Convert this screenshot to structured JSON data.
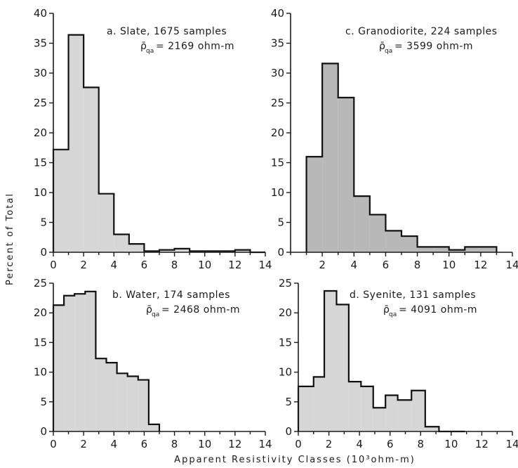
{
  "figure": {
    "ylabel": "Percent of Total",
    "xlabel": "Apparent   Resistivity   Classes   (10³ohm-m)",
    "colors": {
      "ink": "#111111",
      "fill_light": "#d6d6d6",
      "fill_dark": "#b8b8b8"
    }
  },
  "chart_data": [
    {
      "type": "bar",
      "panel": "a",
      "title": "a. Slate, 1675 samples",
      "mean_symbol": "ρ̄",
      "mean_sub": "qa",
      "mean_value": "= 2169 ohm-m",
      "xlim": [
        0,
        14
      ],
      "ylim": [
        0,
        40
      ],
      "xticks": [
        0,
        2,
        4,
        6,
        8,
        10,
        12,
        14
      ],
      "yticks": [
        0,
        5,
        10,
        15,
        20,
        25,
        30,
        35,
        40
      ],
      "bin_edges": [
        0,
        1,
        2,
        3,
        4,
        5,
        6,
        7,
        8,
        9,
        10,
        11,
        12,
        13,
        14
      ],
      "values": [
        17.2,
        36.4,
        27.6,
        9.8,
        3.0,
        1.4,
        0.2,
        0.4,
        0.6,
        0.2,
        0.2,
        0.2,
        0.4,
        0.0
      ]
    },
    {
      "type": "bar",
      "panel": "c",
      "title": "c. Granodiorite, 224 samples",
      "mean_symbol": "ρ̄",
      "mean_sub": "qa",
      "mean_value": "= 3599 ohm-m",
      "xlim": [
        0,
        14
      ],
      "ylim": [
        0,
        40
      ],
      "xticks": [
        2,
        4,
        6,
        8,
        10,
        12,
        14
      ],
      "yticks": [
        0,
        5,
        10,
        15,
        20,
        25,
        30,
        35,
        40
      ],
      "bin_edges": [
        1,
        2,
        3,
        4,
        5,
        6,
        7,
        8,
        9,
        10,
        11,
        12,
        13
      ],
      "values": [
        16.0,
        31.6,
        25.9,
        9.4,
        6.3,
        3.6,
        2.7,
        0.9,
        0.9,
        0.4,
        0.9,
        0.9
      ]
    },
    {
      "type": "bar",
      "panel": "b",
      "title": "b. Water, 174 samples",
      "mean_symbol": "ρ̄",
      "mean_sub": "qa",
      "mean_value": "= 2468 ohm-m",
      "xlim": [
        0,
        14
      ],
      "ylim": [
        0,
        25
      ],
      "xticks": [
        0,
        2,
        4,
        6,
        8,
        10,
        12,
        14
      ],
      "yticks": [
        0,
        5,
        10,
        15,
        20,
        25
      ],
      "bin_edges": [
        0,
        0.7,
        1.4,
        2.1,
        2.8,
        3.5,
        4.2,
        4.9,
        5.6,
        6.3,
        7.0
      ],
      "values": [
        21.3,
        22.9,
        23.2,
        23.6,
        12.3,
        11.6,
        9.8,
        9.3,
        8.7,
        1.2
      ]
    },
    {
      "type": "bar",
      "panel": "d",
      "title": "d. Syenite, 131 samples",
      "mean_symbol": "ρ̄",
      "mean_sub": "qa",
      "mean_value": "= 4091 ohm-m",
      "xlim": [
        0,
        14
      ],
      "ylim": [
        0,
        25
      ],
      "xticks": [
        0,
        2,
        4,
        6,
        8,
        10,
        12,
        14
      ],
      "yticks": [
        0,
        5,
        10,
        15,
        20,
        25
      ],
      "bin_edges": [
        0,
        1,
        1.7,
        2.5,
        3.3,
        4.1,
        4.9,
        5.7,
        6.5,
        7.4,
        8.3,
        9.2,
        10.0,
        10.9
      ],
      "values": [
        7.6,
        9.2,
        23.7,
        21.4,
        8.4,
        7.6,
        4.0,
        6.1,
        5.3,
        6.9,
        0.8,
        0.0,
        0.0
      ]
    }
  ]
}
